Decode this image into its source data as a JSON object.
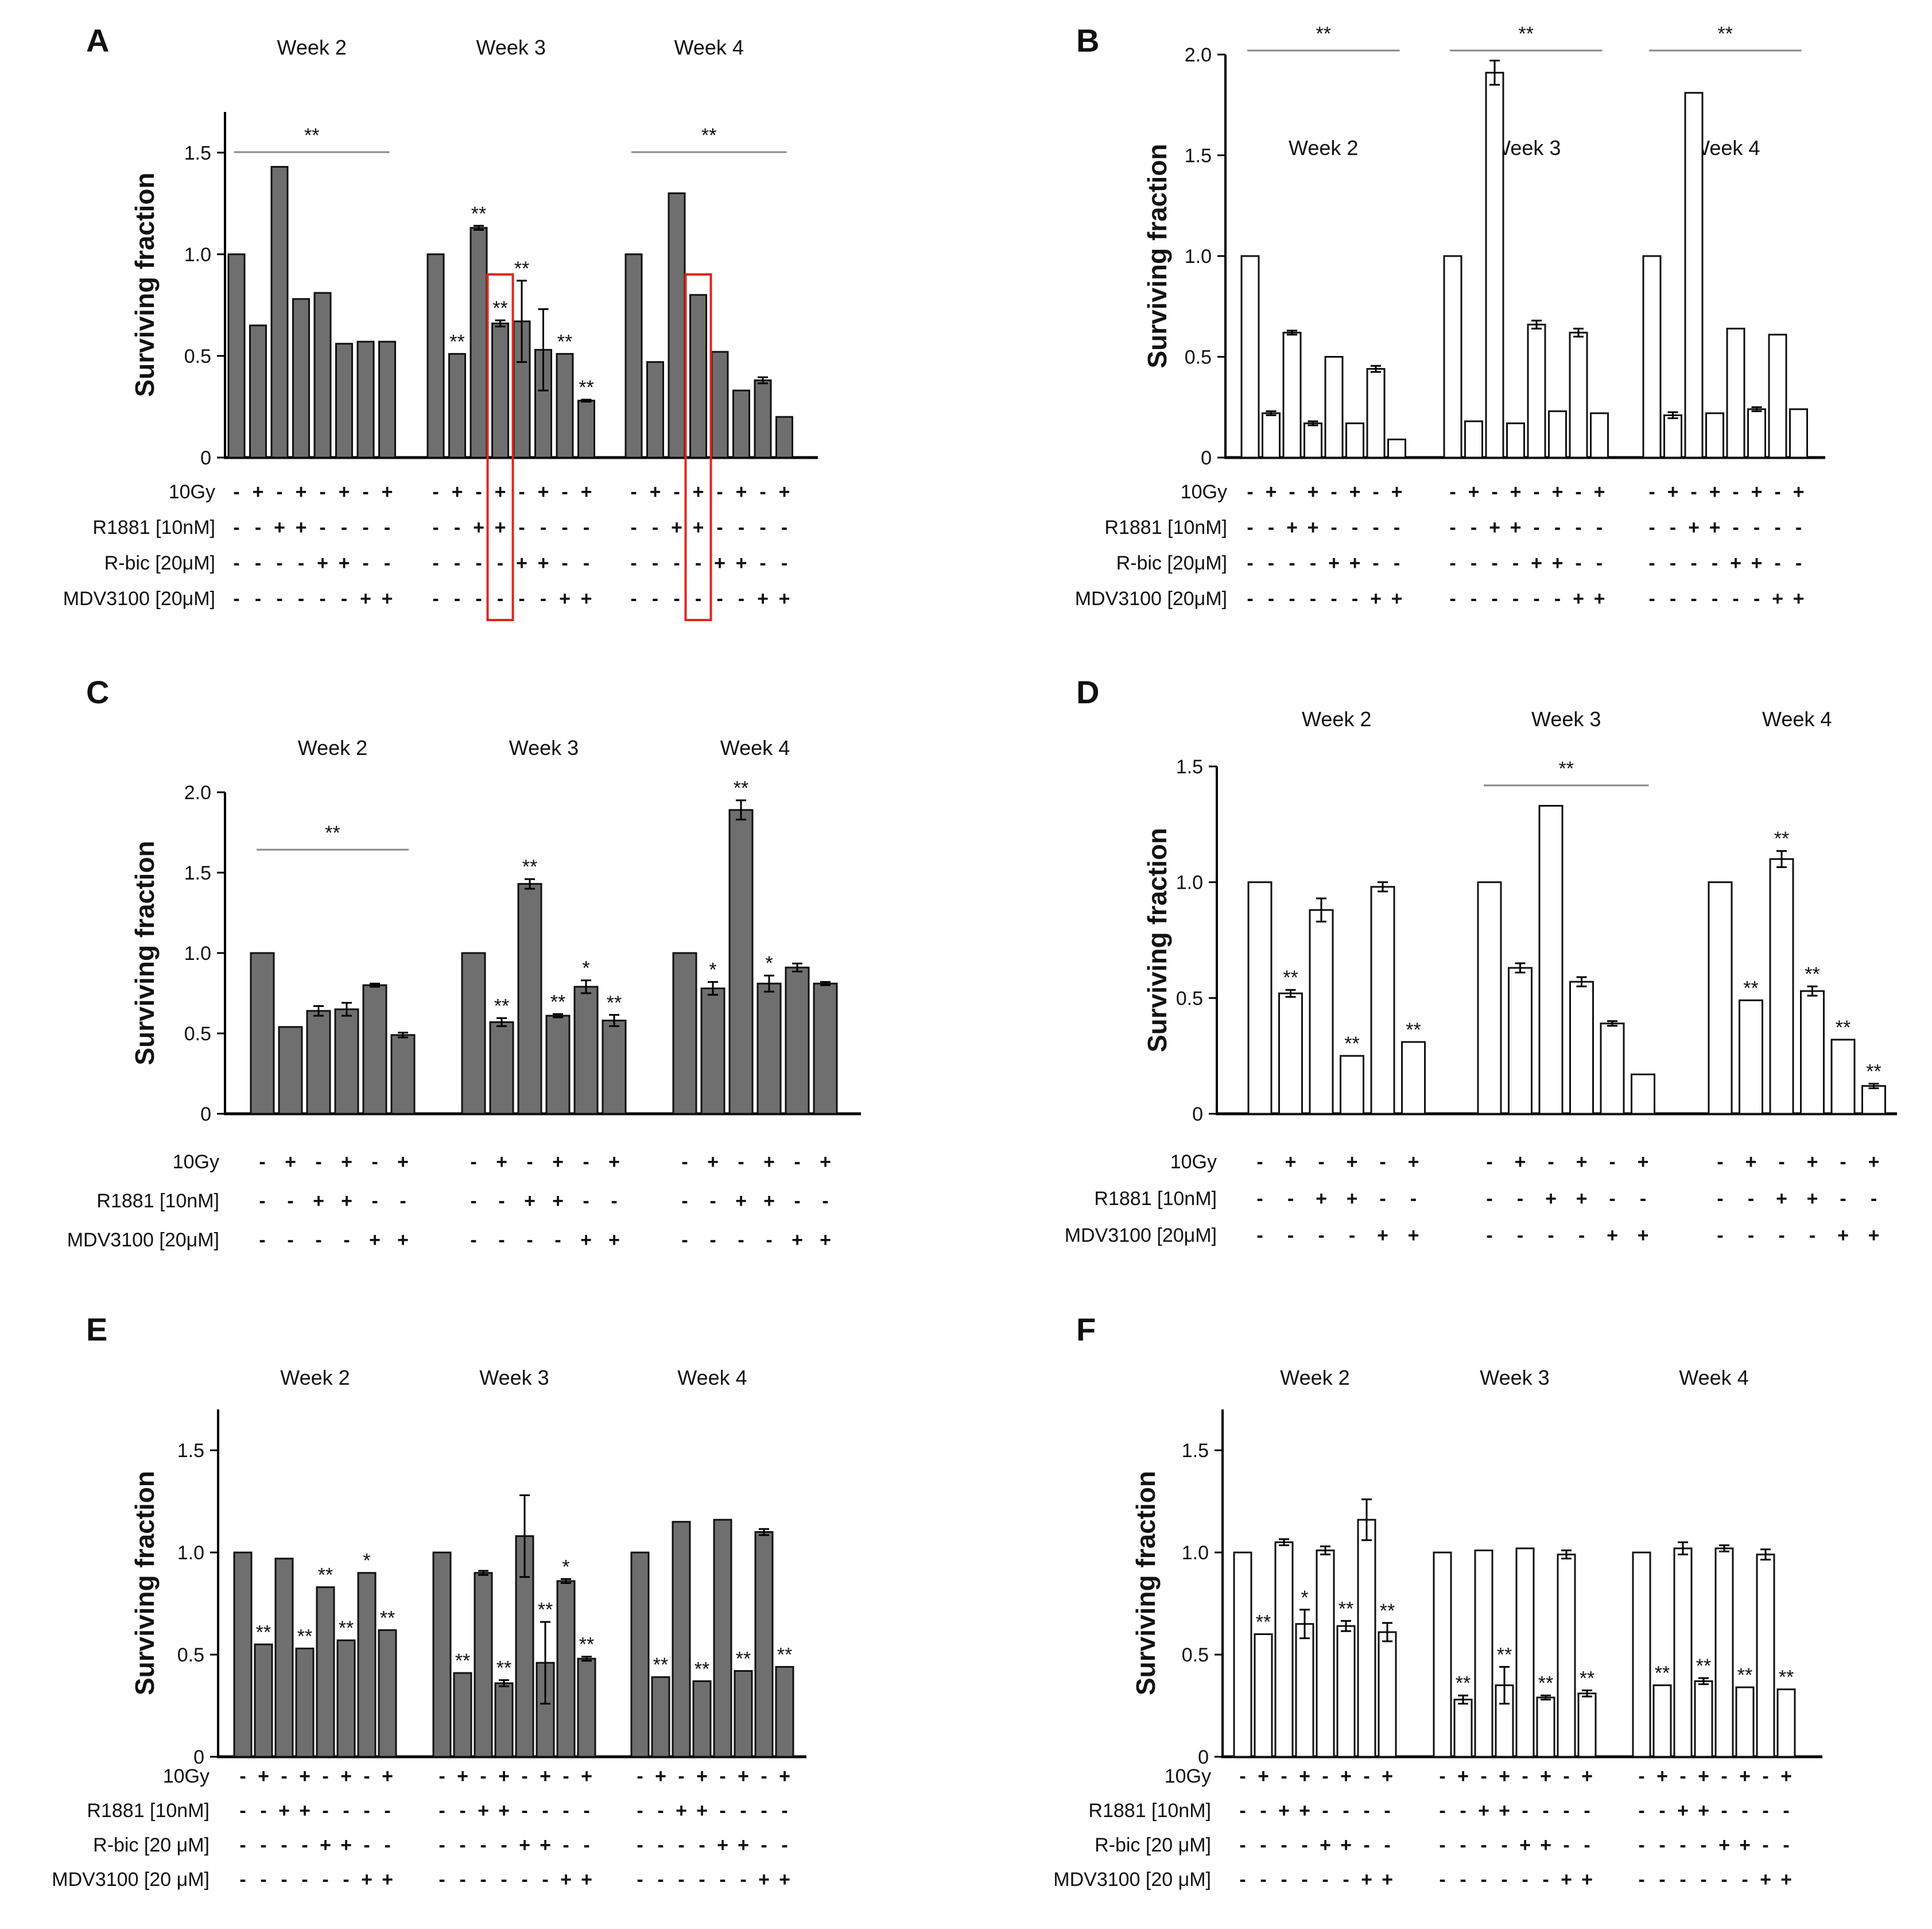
{
  "chart_data": [
    {
      "panel": "A",
      "type": "bar",
      "fill": "grey",
      "ylabel": "Surviving fraction",
      "ylim": [
        0,
        1.7
      ],
      "yticks": [
        0,
        0.5,
        1.0,
        1.5
      ],
      "ytick_labels": [
        "0",
        "0.5",
        "1.0",
        "1.5"
      ],
      "groups": [
        {
          "label": "Week 2",
          "values": [
            1.0,
            0.65,
            1.43,
            0.78,
            0.81,
            0.56,
            0.57,
            0.57
          ]
        },
        {
          "label": "Week 3",
          "values": [
            1.0,
            0.51,
            1.13,
            0.66,
            0.67,
            0.53,
            0.51,
            0.28
          ],
          "errors": [
            0,
            0,
            0.01,
            0.015,
            0.2,
            0.2,
            0,
            0.005
          ],
          "stars": [
            "",
            "**",
            "**",
            "**",
            "**",
            "",
            "**",
            "**"
          ]
        },
        {
          "label": "Week 4",
          "values": [
            1.0,
            0.47,
            1.3,
            0.8,
            0.52,
            0.33,
            0.38,
            0.2
          ],
          "errors": [
            0,
            0,
            0,
            0,
            0,
            0,
            0.015,
            0
          ]
        }
      ],
      "brackets": [
        {
          "group": 0,
          "text": "**"
        },
        {
          "group": 2,
          "text": "**"
        }
      ],
      "highlight_boxes": [
        {
          "group": 1,
          "bar": 3
        },
        {
          "group": 2,
          "bar": 3
        }
      ],
      "treatments": [
        {
          "label": "10Gy",
          "signs": [
            "-",
            "+",
            "-",
            "+",
            "-",
            "+",
            "-",
            "+"
          ]
        },
        {
          "label": "R1881 [10nM]",
          "signs": [
            "-",
            "-",
            "+",
            "+",
            "-",
            "-",
            "-",
            "-"
          ]
        },
        {
          "label": "R-bic [20μM]",
          "signs": [
            "-",
            "-",
            "-",
            "-",
            "+",
            "+",
            "-",
            "-"
          ]
        },
        {
          "label": "MDV3100 [20μM]",
          "signs": [
            "-",
            "-",
            "-",
            "-",
            "-",
            "-",
            "+",
            "+"
          ]
        }
      ]
    },
    {
      "panel": "B",
      "type": "bar",
      "fill": "white",
      "ylabel": "Surviving fraction",
      "ylim": [
        0,
        2.0
      ],
      "yticks": [
        0,
        0.5,
        1.0,
        1.5,
        2.0
      ],
      "ytick_labels": [
        "0",
        "0.5",
        "1.0",
        "1.5",
        "2.0"
      ],
      "groups_label_inside": true,
      "groups": [
        {
          "label": "Week 2",
          "values": [
            1.0,
            0.22,
            0.62,
            0.17,
            0.5,
            0.17,
            0.44,
            0.09
          ],
          "errors": [
            0,
            0.01,
            0.01,
            0.01,
            0,
            0,
            0.015,
            0
          ]
        },
        {
          "label": "Week 3",
          "values": [
            1.0,
            0.18,
            1.91,
            0.17,
            0.66,
            0.23,
            0.62,
            0.22
          ],
          "errors": [
            0,
            0,
            0.06,
            0,
            0.02,
            0,
            0.02,
            0
          ]
        },
        {
          "label": "Week 4",
          "values": [
            1.0,
            0.21,
            1.81,
            0.22,
            0.64,
            0.24,
            0.61,
            0.24
          ],
          "errors": [
            0,
            0.015,
            0,
            0,
            0,
            0.01,
            0,
            0
          ]
        }
      ],
      "brackets": [
        {
          "group": 0,
          "text": "**"
        },
        {
          "group": 1,
          "text": "**"
        },
        {
          "group": 2,
          "text": "**"
        }
      ],
      "treatments": [
        {
          "label": "10Gy",
          "signs": [
            "-",
            "+",
            "-",
            "+",
            "-",
            "+",
            "-",
            "+"
          ]
        },
        {
          "label": "R1881 [10nM]",
          "signs": [
            "-",
            "-",
            "+",
            "+",
            "-",
            "-",
            "-",
            "-"
          ]
        },
        {
          "label": "R-bic [20μM]",
          "signs": [
            "-",
            "-",
            "-",
            "-",
            "+",
            "+",
            "-",
            "-"
          ]
        },
        {
          "label": "MDV3100 [20μM]",
          "signs": [
            "-",
            "-",
            "-",
            "-",
            "-",
            "-",
            "+",
            "+"
          ]
        }
      ]
    },
    {
      "panel": "C",
      "type": "bar",
      "fill": "grey",
      "ylabel": "Surviving fraction",
      "ylim": [
        0,
        2.0
      ],
      "yticks": [
        0,
        0.5,
        1.0,
        1.5,
        2.0
      ],
      "ytick_labels": [
        "0",
        "0.5",
        "1.0",
        "1.5",
        "2.0"
      ],
      "groups": [
        {
          "label": "Week 2",
          "values": [
            1.0,
            0.54,
            0.64,
            0.65,
            0.8,
            0.49
          ],
          "errors": [
            0,
            0,
            0.03,
            0.04,
            0.01,
            0.015
          ]
        },
        {
          "label": "Week 3",
          "values": [
            1.0,
            0.57,
            1.43,
            0.61,
            0.79,
            0.58
          ],
          "errors": [
            0,
            0.025,
            0.03,
            0.01,
            0.04,
            0.035
          ],
          "stars": [
            "",
            "**",
            "**",
            "**",
            "*",
            "**"
          ]
        },
        {
          "label": "Week 4",
          "values": [
            1.0,
            0.78,
            1.89,
            0.81,
            0.91,
            0.81
          ],
          "errors": [
            0,
            0.04,
            0.06,
            0.05,
            0.025,
            0.01
          ],
          "stars": [
            "",
            "*",
            "**",
            "*",
            "",
            ""
          ]
        }
      ],
      "brackets": [
        {
          "group": 0,
          "text": "**"
        }
      ],
      "treatments": [
        {
          "label": "10Gy",
          "signs": [
            "-",
            "+",
            "-",
            "+",
            "-",
            "+"
          ]
        },
        {
          "label": "R1881 [10nM]",
          "signs": [
            "-",
            "-",
            "+",
            "+",
            "-",
            "-"
          ]
        },
        {
          "label": "MDV3100 [20μM]",
          "signs": [
            "-",
            "-",
            "-",
            "-",
            "+",
            "+"
          ]
        }
      ]
    },
    {
      "panel": "D",
      "type": "bar",
      "fill": "white",
      "ylabel": "Surviving fraction",
      "ylim": [
        0,
        1.5
      ],
      "yticks": [
        0,
        0.5,
        1.0,
        1.5
      ],
      "ytick_labels": [
        "0",
        "0.5",
        "1.0",
        "1.5"
      ],
      "groups": [
        {
          "label": "Week 2",
          "values": [
            1.0,
            0.52,
            0.88,
            0.25,
            0.98,
            0.31
          ],
          "errors": [
            0,
            0.015,
            0.05,
            0,
            0.02,
            0
          ],
          "stars": [
            "",
            "**",
            "",
            "**",
            "",
            "**"
          ]
        },
        {
          "label": "Week 3",
          "values": [
            1.0,
            0.63,
            1.33,
            0.57,
            0.39,
            0.17
          ],
          "errors": [
            0,
            0.02,
            0,
            0.02,
            0.01,
            0
          ]
        },
        {
          "label": "Week 4",
          "values": [
            1.0,
            0.49,
            1.1,
            0.53,
            0.32,
            0.12
          ],
          "errors": [
            0,
            0,
            0.035,
            0.02,
            0,
            0.01
          ],
          "stars": [
            "",
            "**",
            "**",
            "**",
            "**",
            "**"
          ]
        }
      ],
      "brackets": [
        {
          "group": 1,
          "text": "**"
        }
      ],
      "treatments": [
        {
          "label": "10Gy",
          "signs": [
            "-",
            "+",
            "-",
            "+",
            "-",
            "+"
          ]
        },
        {
          "label": "R1881 [10nM]",
          "signs": [
            "-",
            "-",
            "+",
            "+",
            "-",
            "-"
          ]
        },
        {
          "label": "MDV3100 [20μM]",
          "signs": [
            "-",
            "-",
            "-",
            "-",
            "+",
            "+"
          ]
        }
      ]
    },
    {
      "panel": "E",
      "type": "bar",
      "fill": "grey",
      "ylabel": "Surviving fraction",
      "ylim": [
        0,
        1.7
      ],
      "yticks": [
        0,
        0.5,
        1.0,
        1.5
      ],
      "ytick_labels": [
        "0",
        "0.5",
        "1.0",
        "1.5"
      ],
      "groups": [
        {
          "label": "Week 2",
          "values": [
            1.0,
            0.55,
            0.97,
            0.53,
            0.83,
            0.57,
            0.9,
            0.62
          ],
          "stars": [
            "",
            "**",
            "",
            "**",
            "**",
            "**",
            "*",
            "**"
          ]
        },
        {
          "label": "Week 3",
          "values": [
            1.0,
            0.41,
            0.9,
            0.36,
            1.08,
            0.46,
            0.86,
            0.48
          ],
          "errors": [
            0,
            0,
            0.01,
            0.015,
            0.2,
            0.2,
            0.01,
            0.01
          ],
          "stars": [
            "",
            "**",
            "",
            "**",
            "",
            "**",
            "*",
            "**"
          ]
        },
        {
          "label": "Week 4",
          "values": [
            1.0,
            0.39,
            1.15,
            0.37,
            1.16,
            0.42,
            1.1,
            0.44
          ],
          "errors": [
            0,
            0,
            0,
            0,
            0,
            0,
            0.015,
            0
          ],
          "stars": [
            "",
            "**",
            "",
            "**",
            "",
            "**",
            "",
            "**"
          ]
        }
      ],
      "treatments": [
        {
          "label": "10Gy",
          "signs": [
            "-",
            "+",
            "-",
            "+",
            "-",
            "+",
            "-",
            "+"
          ]
        },
        {
          "label": "R1881 [10nM]",
          "signs": [
            "-",
            "-",
            "+",
            "+",
            "-",
            "-",
            "-",
            "-"
          ]
        },
        {
          "label": "R-bic [20 μM]",
          "signs": [
            "-",
            "-",
            "-",
            "-",
            "+",
            "+",
            "-",
            "-"
          ]
        },
        {
          "label": "MDV3100 [20 μM]",
          "signs": [
            "-",
            "-",
            "-",
            "-",
            "-",
            "-",
            "+",
            "+"
          ]
        }
      ]
    },
    {
      "panel": "F",
      "type": "bar",
      "fill": "white",
      "ylabel": "Surviving fraction",
      "ylim": [
        0,
        1.7
      ],
      "yticks": [
        0,
        0.5,
        1.0,
        1.5
      ],
      "ytick_labels": [
        "0",
        "0.5",
        "1.0",
        "1.5"
      ],
      "groups": [
        {
          "label": "Week 2",
          "values": [
            1.0,
            0.6,
            1.05,
            0.65,
            1.01,
            0.64,
            1.16,
            0.61
          ],
          "errors": [
            0,
            0,
            0.015,
            0.07,
            0.02,
            0.025,
            0.1,
            0.045
          ],
          "stars": [
            "",
            "**",
            "",
            "*",
            "",
            "**",
            "",
            "**"
          ]
        },
        {
          "label": "Week 3",
          "values": [
            1.0,
            0.28,
            1.01,
            0.35,
            1.02,
            0.29,
            0.99,
            0.31
          ],
          "errors": [
            0,
            0.02,
            0,
            0.09,
            0,
            0.01,
            0.02,
            0.015
          ],
          "stars": [
            "",
            "**",
            "",
            "**",
            "",
            "**",
            "",
            "**"
          ]
        },
        {
          "label": "Week 4",
          "values": [
            1.0,
            0.35,
            1.02,
            0.37,
            1.02,
            0.34,
            0.99,
            0.33
          ],
          "errors": [
            0,
            0,
            0.03,
            0.015,
            0.015,
            0,
            0.025,
            0
          ],
          "stars": [
            "",
            "**",
            "",
            "**",
            "",
            "**",
            "",
            "**"
          ]
        }
      ],
      "treatments": [
        {
          "label": "10Gy",
          "signs": [
            "-",
            "+",
            "-",
            "+",
            "-",
            "+",
            "-",
            "+"
          ]
        },
        {
          "label": "R1881 [10nM]",
          "signs": [
            "-",
            "-",
            "+",
            "+",
            "-",
            "-",
            "-",
            "-"
          ]
        },
        {
          "label": "R-bic [20 μM]",
          "signs": [
            "-",
            "-",
            "-",
            "-",
            "+",
            "+",
            "-",
            "-"
          ]
        },
        {
          "label": "MDV3100 [20 μM]",
          "signs": [
            "-",
            "-",
            "-",
            "-",
            "-",
            "-",
            "+",
            "+"
          ]
        }
      ]
    }
  ]
}
